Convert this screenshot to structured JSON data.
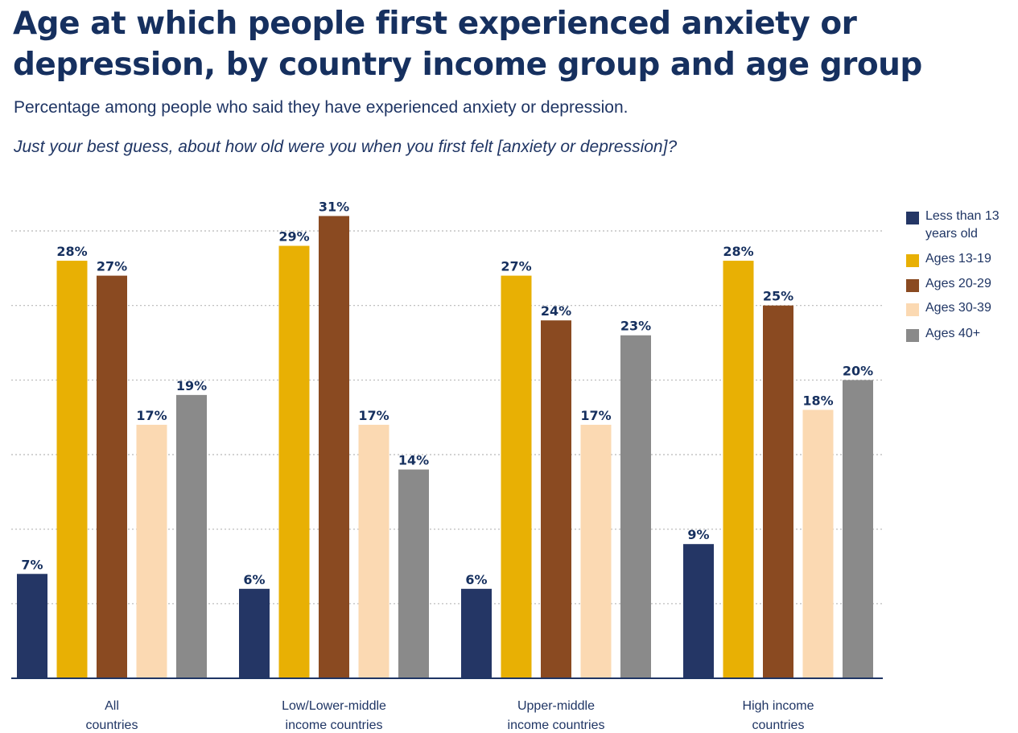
{
  "header": {
    "title_line1": "Age at which people first experienced anxiety or",
    "title_line2": "depression, by country income group and age group",
    "subtitle": "Percentage among people who said they have experienced anxiety or depression.",
    "question": "Just your best guess, about how old were you when you first felt [anxiety or depression]?"
  },
  "legend": [
    {
      "label": "Less than 13 years old",
      "color": "#243665"
    },
    {
      "label": "Ages 13-19",
      "color": "#e8b004"
    },
    {
      "label": "Ages 20-29",
      "color": "#8a4a21"
    },
    {
      "label": "Ages 30-39",
      "color": "#fbd9b2"
    },
    {
      "label": "Ages 40+",
      "color": "#8a8a8a"
    }
  ],
  "chart_data": {
    "type": "bar",
    "title": "Age at which people first experienced anxiety or depression, by country income group and age group",
    "categories": [
      [
        "All",
        "countries"
      ],
      [
        "Low/Lower-middle",
        "income countries"
      ],
      [
        "Upper-middle",
        "income countries"
      ],
      [
        "High income",
        "countries"
      ]
    ],
    "series": [
      {
        "name": "Less than 13 years old",
        "color": "#243665",
        "values": [
          7,
          6,
          6,
          9
        ],
        "labels": [
          "7%",
          "6%",
          "6%",
          "9%"
        ]
      },
      {
        "name": "Ages 13-19",
        "color": "#e8b004",
        "values": [
          28,
          29,
          27,
          28
        ],
        "labels": [
          "28%",
          "29%",
          "27%",
          "28%"
        ]
      },
      {
        "name": "Ages 20-29",
        "color": "#8a4a21",
        "values": [
          27,
          31,
          24,
          25
        ],
        "labels": [
          "27%",
          "31%",
          "24%",
          "25%"
        ]
      },
      {
        "name": "Ages 30-39",
        "color": "#fbd9b2",
        "values": [
          17,
          17,
          17,
          18
        ],
        "labels": [
          "17%",
          "17%",
          "17%",
          "18%"
        ]
      },
      {
        "name": "Ages 40+",
        "color": "#8a8a8a",
        "values": [
          19,
          14,
          23,
          20
        ],
        "labels": [
          "19%",
          "14%",
          "23%",
          "20%"
        ]
      }
    ],
    "ylim": [
      0,
      30
    ],
    "gridlines": [
      5,
      10,
      15,
      20,
      25,
      30
    ],
    "grid": true,
    "xlabel": "",
    "ylabel": "",
    "legend_position": "right"
  }
}
